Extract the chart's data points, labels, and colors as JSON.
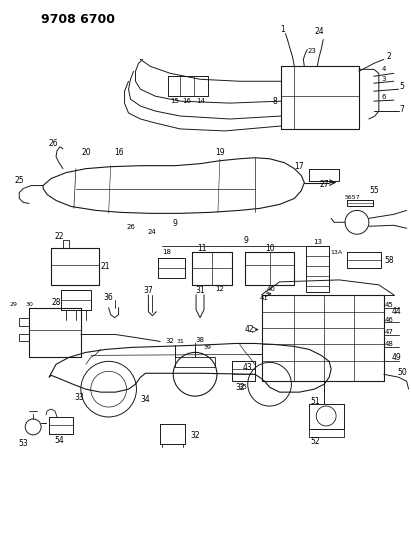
{
  "title": "9708 6700",
  "bg_color": "#ffffff",
  "line_color": "#1a1a1a",
  "figsize": [
    4.11,
    5.33
  ],
  "dpi": 100
}
